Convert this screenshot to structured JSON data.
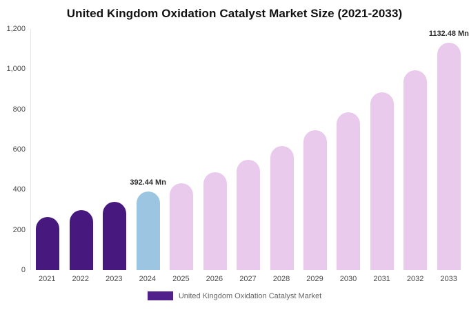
{
  "chart_data": {
    "type": "bar",
    "title": "United Kingdom Oxidation Catalyst Market Size (2021-2033)",
    "legend": "United Kingdom Oxidation Catalyst Market",
    "categories": [
      "2021",
      "2022",
      "2023",
      "2024",
      "2025",
      "2026",
      "2027",
      "2028",
      "2029",
      "2030",
      "2031",
      "2032",
      "2033"
    ],
    "values": [
      265,
      300,
      340,
      392.44,
      432,
      487,
      548,
      617,
      696,
      785,
      885,
      994,
      1132.48
    ],
    "unit": "Mn",
    "ylabel": "",
    "xlabel": "",
    "ylim": [
      0,
      1200
    ],
    "y_ticks": [
      "1,200",
      "1,000",
      "800",
      "600",
      "400",
      "200",
      "0"
    ],
    "grid": false,
    "legend_position": "bottom",
    "bar_colors": [
      "#47187e",
      "#47187e",
      "#47187e",
      "#9bc5e1",
      "#e9c9ec",
      "#e9c9ec",
      "#e9c9ec",
      "#e9c9ec",
      "#e9c9ec",
      "#e9c9ec",
      "#e9c9ec",
      "#e9c9ec",
      "#e9c9ec"
    ],
    "annotations": [
      {
        "index": 3,
        "text": "392.44 Mn"
      },
      {
        "index": 12,
        "text": "1132.48 Mn"
      }
    ],
    "colors": {
      "historical_bar": "#47187e",
      "current_year_bar": "#9bc5e1",
      "forecast_bar": "#e9c9ec",
      "legend_swatch": "#52208a",
      "axis_text": "#4a4a4a",
      "title_text": "#111111"
    }
  }
}
